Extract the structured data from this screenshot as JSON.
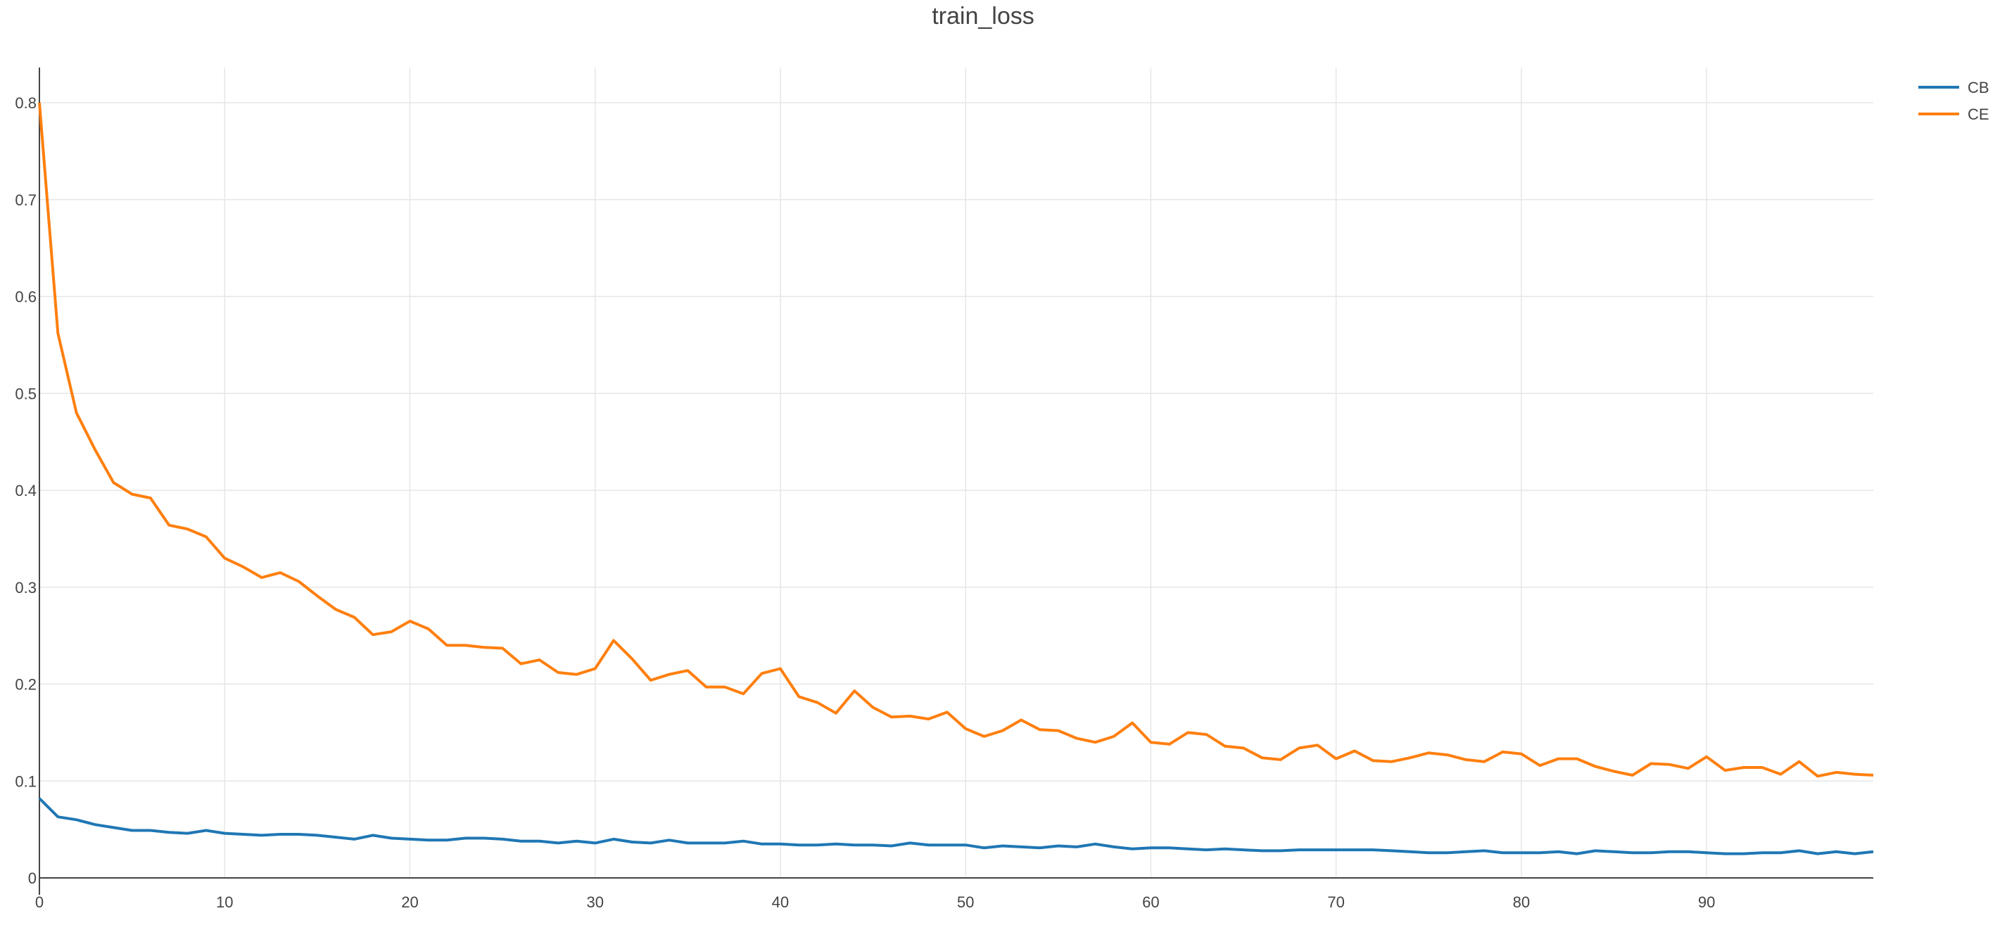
{
  "colors": {
    "CB": "#1f77b4",
    "CE": "#ff7f0e",
    "grid": "#e6e6e6",
    "axis": "#444444"
  },
  "chart_data": {
    "type": "line",
    "title": "train_loss",
    "xlabel": "",
    "ylabel": "",
    "xlim": [
      0,
      99
    ],
    "ylim": [
      0,
      0.8
    ],
    "grid": true,
    "legend_placement": "top-right",
    "x_ticks": [
      0,
      10,
      20,
      30,
      40,
      50,
      60,
      70,
      80,
      90
    ],
    "y_ticks": [
      0,
      0.1,
      0.2,
      0.3,
      0.4,
      0.5,
      0.6,
      0.7,
      0.8
    ],
    "x": [
      0,
      1,
      2,
      3,
      4,
      5,
      6,
      7,
      8,
      9,
      10,
      11,
      12,
      13,
      14,
      15,
      16,
      17,
      18,
      19,
      20,
      21,
      22,
      23,
      24,
      25,
      26,
      27,
      28,
      29,
      30,
      31,
      32,
      33,
      34,
      35,
      36,
      37,
      38,
      39,
      40,
      41,
      42,
      43,
      44,
      45,
      46,
      47,
      48,
      49,
      50,
      51,
      52,
      53,
      54,
      55,
      56,
      57,
      58,
      59,
      60,
      61,
      62,
      63,
      64,
      65,
      66,
      67,
      68,
      69,
      70,
      71,
      72,
      73,
      74,
      75,
      76,
      77,
      78,
      79,
      80,
      81,
      82,
      83,
      84,
      85,
      86,
      87,
      88,
      89,
      90,
      91,
      92,
      93,
      94,
      95,
      96,
      97,
      98,
      99
    ],
    "series": [
      {
        "name": "CB",
        "values": [
          0.082,
          0.063,
          0.06,
          0.055,
          0.052,
          0.049,
          0.049,
          0.047,
          0.046,
          0.049,
          0.046,
          0.045,
          0.044,
          0.045,
          0.045,
          0.044,
          0.042,
          0.04,
          0.044,
          0.041,
          0.04,
          0.039,
          0.039,
          0.041,
          0.041,
          0.04,
          0.038,
          0.038,
          0.036,
          0.038,
          0.036,
          0.04,
          0.037,
          0.036,
          0.039,
          0.036,
          0.036,
          0.036,
          0.038,
          0.035,
          0.035,
          0.034,
          0.034,
          0.035,
          0.034,
          0.034,
          0.033,
          0.036,
          0.034,
          0.034,
          0.034,
          0.031,
          0.033,
          0.032,
          0.031,
          0.033,
          0.032,
          0.035,
          0.032,
          0.03,
          0.031,
          0.031,
          0.03,
          0.029,
          0.03,
          0.029,
          0.028,
          0.028,
          0.029,
          0.029,
          0.029,
          0.029,
          0.029,
          0.028,
          0.027,
          0.026,
          0.026,
          0.027,
          0.028,
          0.026,
          0.026,
          0.026,
          0.027,
          0.025,
          0.028,
          0.027,
          0.026,
          0.026,
          0.027,
          0.027,
          0.026,
          0.025,
          0.025,
          0.026,
          0.026,
          0.028,
          0.025,
          0.027,
          0.025,
          0.027
        ]
      },
      {
        "name": "CE",
        "values": [
          0.8,
          0.562,
          0.48,
          0.442,
          0.408,
          0.396,
          0.392,
          0.364,
          0.36,
          0.352,
          0.33,
          0.321,
          0.31,
          0.315,
          0.306,
          0.291,
          0.277,
          0.269,
          0.251,
          0.254,
          0.265,
          0.257,
          0.24,
          0.24,
          0.238,
          0.237,
          0.221,
          0.225,
          0.212,
          0.21,
          0.216,
          0.245,
          0.226,
          0.204,
          0.21,
          0.214,
          0.197,
          0.197,
          0.19,
          0.211,
          0.216,
          0.187,
          0.181,
          0.17,
          0.193,
          0.176,
          0.166,
          0.167,
          0.164,
          0.171,
          0.154,
          0.146,
          0.152,
          0.163,
          0.153,
          0.152,
          0.144,
          0.14,
          0.146,
          0.16,
          0.14,
          0.138,
          0.15,
          0.148,
          0.136,
          0.134,
          0.124,
          0.122,
          0.134,
          0.137,
          0.123,
          0.131,
          0.121,
          0.12,
          0.124,
          0.129,
          0.127,
          0.122,
          0.12,
          0.13,
          0.128,
          0.116,
          0.123,
          0.123,
          0.115,
          0.11,
          0.106,
          0.118,
          0.117,
          0.113,
          0.125,
          0.111,
          0.114,
          0.114,
          0.107,
          0.12,
          0.105,
          0.109,
          0.107,
          0.106
        ]
      }
    ]
  }
}
